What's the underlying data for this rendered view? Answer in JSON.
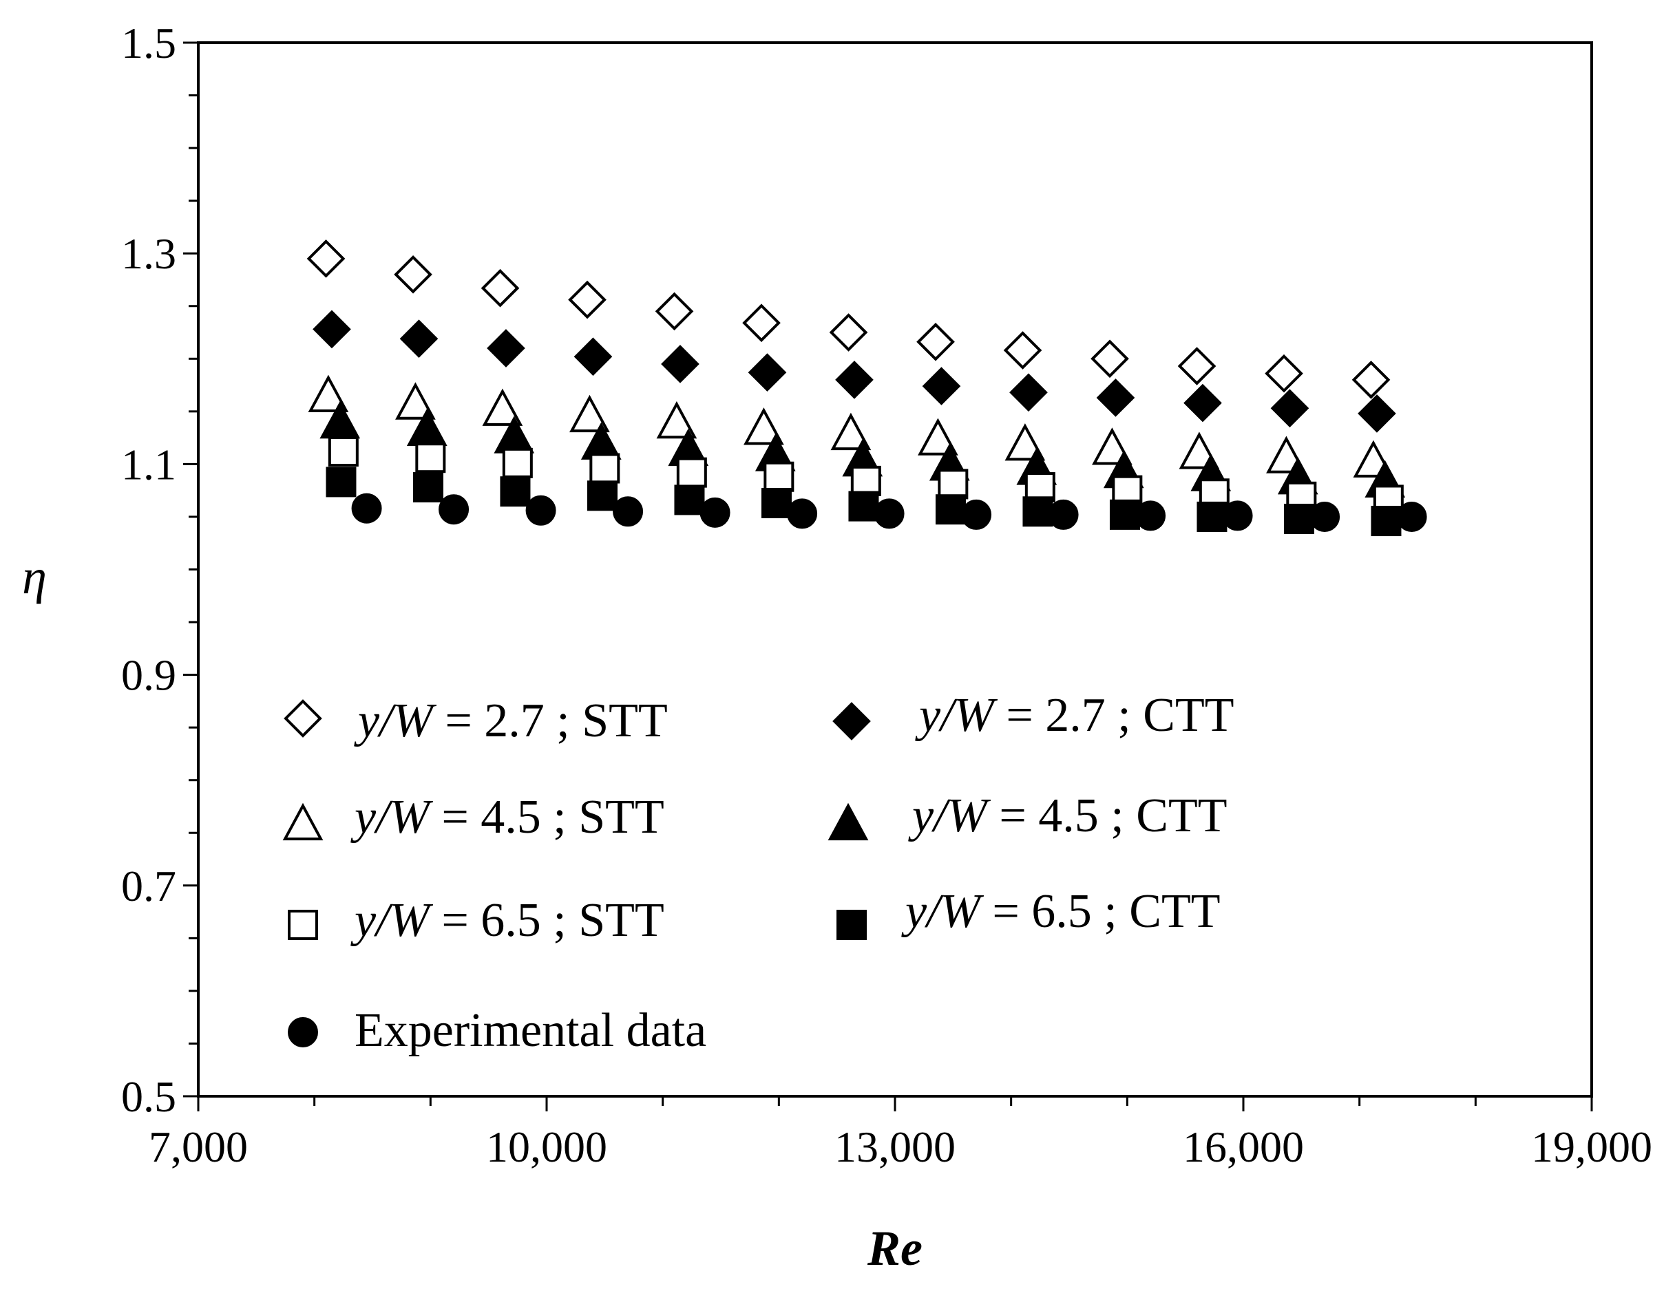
{
  "chart_data": {
    "type": "scatter",
    "title": "",
    "xlabel": "Re",
    "ylabel": "η",
    "xlim": [
      7000,
      19000
    ],
    "ylim": [
      0.5,
      1.5
    ],
    "xticks": [
      "7,000",
      "10,000",
      "13,000",
      "16,000",
      "19,000"
    ],
    "xtick_values": [
      7000,
      10000,
      13000,
      16000,
      19000
    ],
    "yticks": [
      "0.5",
      "0.7",
      "0.9",
      "1.1",
      "1.3",
      "1.5"
    ],
    "ytick_values": [
      0.5,
      0.7,
      0.9,
      1.1,
      1.3,
      1.5
    ],
    "grid": false,
    "legend_position": "lower-left",
    "series": [
      {
        "name": "y/W = 2.7 ; STT",
        "label_var": "y/W",
        "label_rest": " = 2.7 ;  STT",
        "marker": "diamond-open",
        "x": [
          8100,
          8850,
          9600,
          10350,
          11100,
          11850,
          12600,
          13350,
          14100,
          14850,
          15600,
          16350,
          17100
        ],
        "y": [
          1.295,
          1.28,
          1.267,
          1.256,
          1.245,
          1.234,
          1.225,
          1.216,
          1.208,
          1.2,
          1.193,
          1.186,
          1.18
        ]
      },
      {
        "name": "y/W = 2.7 ; CTT",
        "label_var": "y/W",
        "label_rest": " = 2.7 ;  CTT",
        "marker": "diamond-filled",
        "x": [
          8150,
          8900,
          9650,
          10400,
          11150,
          11900,
          12650,
          13400,
          14150,
          14900,
          15650,
          16400,
          17150
        ],
        "y": [
          1.228,
          1.219,
          1.21,
          1.202,
          1.195,
          1.187,
          1.18,
          1.174,
          1.168,
          1.163,
          1.158,
          1.153,
          1.148
        ]
      },
      {
        "name": "y/W = 4.5 ; STT",
        "label_var": "y/W",
        "label_rest": " = 4.5 ;  STT",
        "marker": "triangle-open",
        "x": [
          8120,
          8870,
          9620,
          10370,
          11120,
          11870,
          12620,
          13370,
          14120,
          14870,
          15620,
          16370,
          17120
        ],
        "y": [
          1.165,
          1.158,
          1.152,
          1.146,
          1.14,
          1.134,
          1.129,
          1.124,
          1.119,
          1.115,
          1.111,
          1.107,
          1.103
        ]
      },
      {
        "name": "y/W = 4.5 ; CTT",
        "label_var": "y/W",
        "label_rest": " = 4.5 ;  CTT",
        "marker": "triangle-filled",
        "x": [
          8220,
          8970,
          9720,
          10470,
          11220,
          11970,
          12720,
          13470,
          14220,
          14970,
          15720,
          16470,
          17220
        ],
        "y": [
          1.14,
          1.133,
          1.126,
          1.12,
          1.114,
          1.109,
          1.104,
          1.1,
          1.096,
          1.093,
          1.09,
          1.087,
          1.084
        ]
      },
      {
        "name": "y/W = 6.5 ; STT",
        "label_var": "y/W",
        "label_rest": " = 6.5 ;  STT",
        "marker": "square-open",
        "x": [
          8250,
          9000,
          9750,
          10500,
          11250,
          12000,
          12750,
          13500,
          14250,
          15000,
          15750,
          16500,
          17250
        ],
        "y": [
          1.112,
          1.106,
          1.101,
          1.096,
          1.092,
          1.088,
          1.084,
          1.081,
          1.078,
          1.075,
          1.072,
          1.069,
          1.066
        ]
      },
      {
        "name": "y/W = 6.5 ; CTT",
        "label_var": "y/W",
        "label_rest": " = 6.5 ;  CTT",
        "marker": "square-filled",
        "x": [
          8230,
          8980,
          9730,
          10480,
          11230,
          11980,
          12730,
          13480,
          14230,
          14980,
          15730,
          16480,
          17230
        ],
        "y": [
          1.083,
          1.078,
          1.074,
          1.07,
          1.066,
          1.063,
          1.06,
          1.057,
          1.055,
          1.052,
          1.05,
          1.048,
          1.046
        ]
      },
      {
        "name": "Experimental data",
        "label_var": "",
        "label_rest": "Experimental data",
        "marker": "circle-filled",
        "x": [
          8450,
          9200,
          9950,
          10700,
          11450,
          12200,
          12950,
          13700,
          14450,
          15200,
          15950,
          16700,
          17450
        ],
        "y": [
          1.058,
          1.057,
          1.056,
          1.055,
          1.054,
          1.053,
          1.053,
          1.052,
          1.052,
          1.051,
          1.051,
          1.05,
          1.05
        ]
      }
    ]
  }
}
